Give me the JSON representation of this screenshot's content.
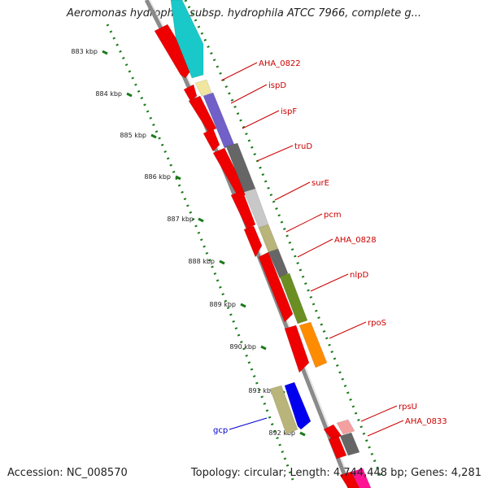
{
  "header": {
    "title": "Aeromonas hydrophila subsp. hydrophila ATCC 7966, complete g..."
  },
  "footer": {
    "accession": "Accession: NC_008570",
    "summary": "Topology: circular; Length: 4,744,448 bp; Genes: 4,281"
  },
  "ruler": {
    "labels": [
      "883 kbp",
      "884 kbp",
      "885 kbp",
      "886 kbp",
      "887 kbp",
      "888 kbp",
      "889 kbp",
      "890 kbp",
      "891 kbp",
      "892 kbp"
    ]
  },
  "gene_labels": [
    {
      "name": "AHA_0822",
      "color": "#cc0000"
    },
    {
      "name": "ispD",
      "color": "#cc0000"
    },
    {
      "name": "ispF",
      "color": "#cc0000"
    },
    {
      "name": "truD",
      "color": "#cc0000"
    },
    {
      "name": "surE",
      "color": "#cc0000"
    },
    {
      "name": "pcm",
      "color": "#cc0000"
    },
    {
      "name": "AHA_0828",
      "color": "#cc0000"
    },
    {
      "name": "nlpD",
      "color": "#cc0000"
    },
    {
      "name": "rpoS",
      "color": "#cc0000"
    },
    {
      "name": "rpsU",
      "color": "#cc0000"
    },
    {
      "name": "AHA_0833",
      "color": "#cc0000"
    },
    {
      "name": "gcp",
      "color": "#0000cc"
    }
  ],
  "colors": {
    "backbone": "#8a8a8a",
    "cds_forward": "#ee0000",
    "tick_green": "#1a7a1a",
    "cyan_feature": "#19c8c8",
    "pale_yellow_feature": "#f0e6a0",
    "slate_blue_feature": "#7060c8",
    "dark_gray_feature": "#666666",
    "light_gray_feature": "#c8c8c8",
    "khaki_feature": "#b8b47a",
    "olive_feature": "#6b8e23",
    "orange_feature": "#ff8c00",
    "blue_feature": "#0000ee",
    "pink_feature": "#f4a0a0",
    "magenta_feature": "#ff1493"
  }
}
